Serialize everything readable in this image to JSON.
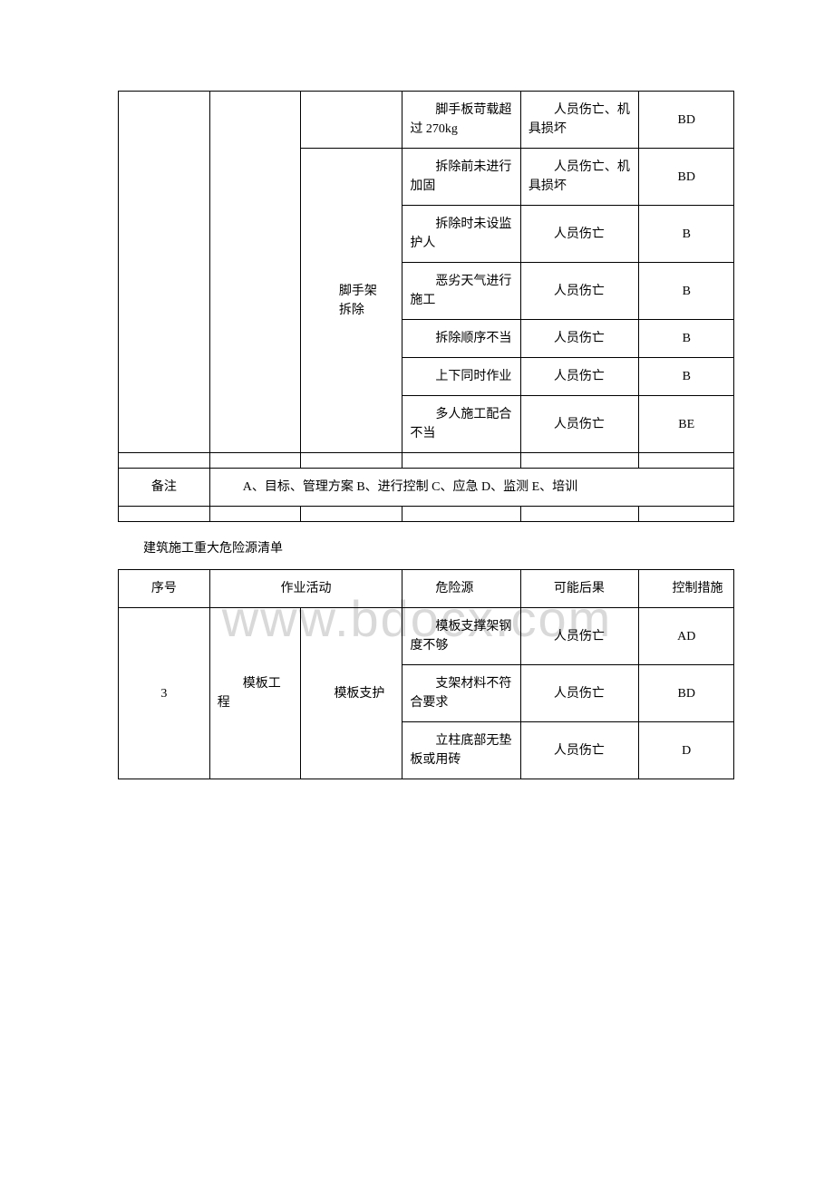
{
  "watermark": "www.bdocx.com",
  "table1": {
    "col3_header": "脚手架 拆除",
    "rows": [
      {
        "danger": "脚手板苛载超过 270kg",
        "result": "人员伤亡、机具损坏",
        "measure": "BD"
      },
      {
        "danger": "拆除前未进行加固",
        "result": "人员伤亡、机具损坏",
        "measure": "BD"
      },
      {
        "danger": "拆除时未设监护人",
        "result": "人员伤亡",
        "measure": "B"
      },
      {
        "danger": "恶劣天气进行施工",
        "result": "人员伤亡",
        "measure": "B"
      },
      {
        "danger": "拆除顺序不当",
        "result": "人员伤亡",
        "measure": "B"
      },
      {
        "danger": "上下同时作业",
        "result": "人员伤亡",
        "measure": "B"
      },
      {
        "danger": "多人施工配合不当",
        "result": "人员伤亡",
        "measure": "BE"
      }
    ],
    "note_label": "备注",
    "note_text": "A、目标、管理方案 B、进行控制 C、应急 D、监测 E、培训"
  },
  "section_title": "建筑施工重大危险源清单",
  "table2": {
    "headers": {
      "seq": "序号",
      "activity": "作业活动",
      "danger": "危险源",
      "result": "可能后果",
      "measure": "控制措施"
    },
    "seq": "3",
    "activity_main": "模板工程",
    "activity_sub": "模板支护",
    "rows": [
      {
        "danger": "模板支撑架钢度不够",
        "result": "人员伤亡",
        "measure": "AD"
      },
      {
        "danger": "支架材料不符合要求",
        "result": "人员伤亡",
        "measure": "BD"
      },
      {
        "danger": "立柱底部无垫板或用砖",
        "result": "人员伤亡",
        "measure": "D"
      }
    ]
  }
}
